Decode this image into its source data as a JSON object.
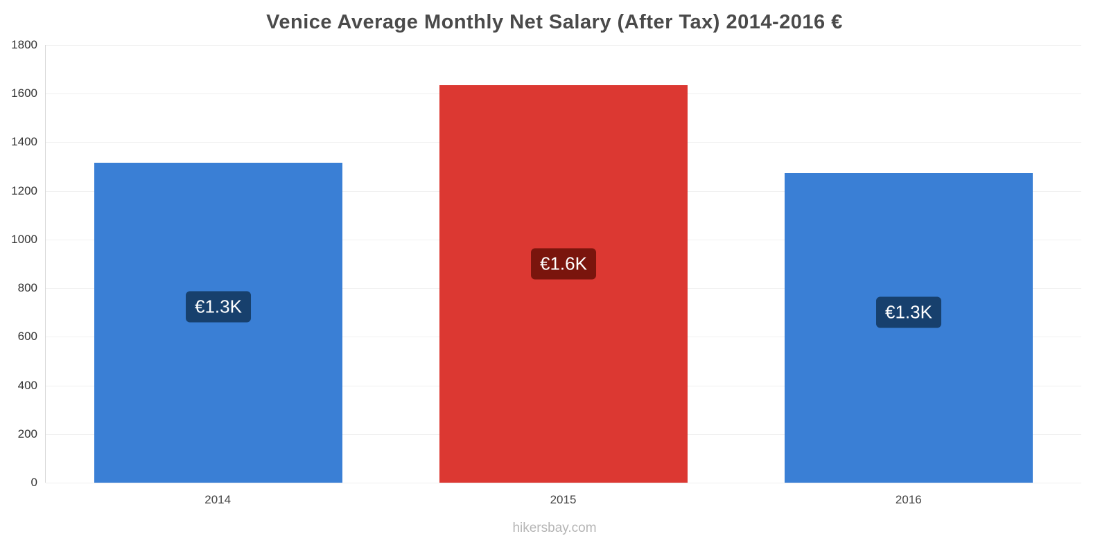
{
  "title": "Venice Average Monthly Net Salary (After Tax) 2014-2016 €",
  "footer": "hikersbay.com",
  "chart_data": {
    "type": "bar",
    "title": "Venice Average Monthly Net Salary (After Tax) 2014-2016 €",
    "categories": [
      "2014",
      "2015",
      "2016"
    ],
    "values": [
      1315,
      1635,
      1272
    ],
    "value_labels": [
      "€1.3K",
      "€1.6K",
      "€1.3K"
    ],
    "bar_colors": [
      "#3A7FD5",
      "#DC3832",
      "#3A7FD5"
    ],
    "label_bg_colors": [
      "#17406D",
      "#7A150D",
      "#17406D"
    ],
    "xlabel": "",
    "ylabel": "",
    "ylim": [
      0,
      1800
    ],
    "ytick_step": 200,
    "grid": true,
    "legend": false,
    "watermark": "hikersbay.com"
  }
}
